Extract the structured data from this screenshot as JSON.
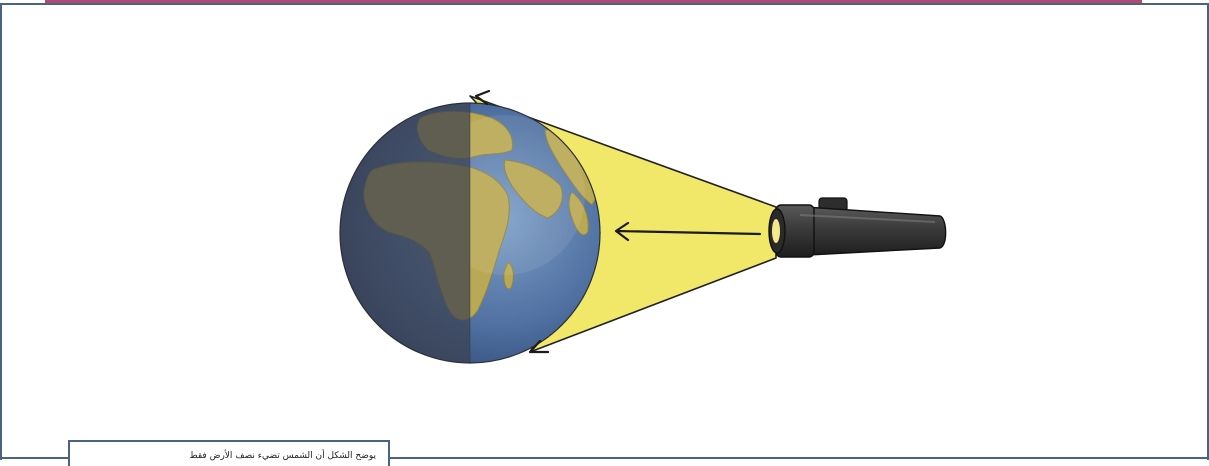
{
  "caption": {
    "text": "يوضح الشكل أن الشمس تضيء نصف الأرض فقط"
  },
  "colors": {
    "frame": "#4b6383",
    "top_bar": "#b04a6e",
    "light_beam": "#f1e86a",
    "earth_dark_side": "#464b55",
    "earth_ocean": "#4a6b9e",
    "earth_land": "#c9b25a",
    "flashlight_body": "#3a3a3a"
  },
  "icons": {
    "light_source": "flashlight-icon",
    "planet": "earth-icon",
    "direction": "arrow-left-icon"
  }
}
